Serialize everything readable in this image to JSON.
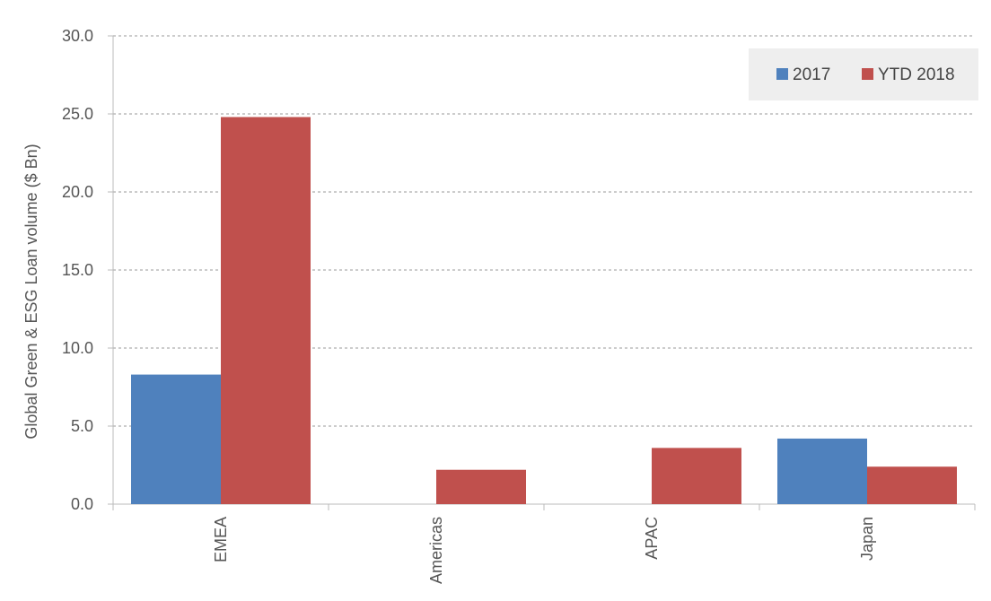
{
  "chart_data": {
    "type": "bar",
    "title": "",
    "xlabel": "",
    "ylabel": "Global Green & ESG Loan volume ($  Bn)",
    "ylim": [
      0,
      30
    ],
    "yticks": [
      "0.0",
      "5.0",
      "10.0",
      "15.0",
      "20.0",
      "25.0",
      "30.0"
    ],
    "categories": [
      "EMEA",
      "Americas",
      "APAC",
      "Japan"
    ],
    "series": [
      {
        "name": "2017",
        "color": "#4f81bd",
        "values": [
          8.3,
          0,
          0,
          4.2
        ]
      },
      {
        "name": "YTD 2018",
        "color": "#c0504d",
        "values": [
          24.8,
          2.2,
          3.6,
          2.4
        ]
      }
    ],
    "grid": true,
    "legend_position": "top-right"
  }
}
